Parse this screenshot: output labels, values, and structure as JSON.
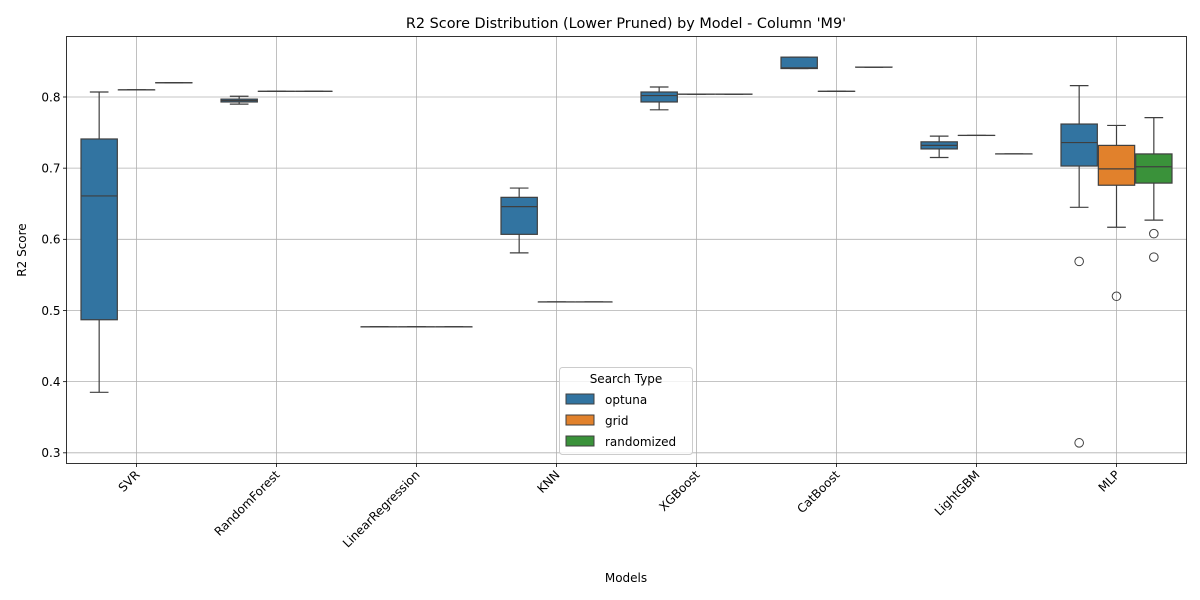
{
  "chart_data": {
    "type": "box",
    "title": "R2 Score Distribution (Lower Pruned) by Model - Column 'M9'",
    "xlabel": "Models",
    "ylabel": "R2 Score",
    "ylim": [
      0.285,
      0.885
    ],
    "yticks": [
      0.3,
      0.4,
      0.5,
      0.6,
      0.7,
      0.8
    ],
    "grid": true,
    "categories": [
      "SVR",
      "RandomForest",
      "LinearRegression",
      "KNN",
      "XGBoost",
      "CatBoost",
      "LightGBM",
      "MLP"
    ],
    "legend": {
      "title": "Search Type",
      "placement": "lower center",
      "entries": [
        "optuna",
        "grid",
        "randomized"
      ]
    },
    "colors": {
      "optuna": "#3274a1",
      "grid": "#e1812c",
      "randomized": "#3a923a"
    },
    "series": [
      {
        "name": "optuna",
        "boxes": [
          {
            "whislo": 0.385,
            "q1": 0.487,
            "med": 0.661,
            "q3": 0.741,
            "whishi": 0.807,
            "fliers": []
          },
          {
            "whislo": 0.79,
            "q1": 0.793,
            "med": 0.795,
            "q3": 0.797,
            "whishi": 0.801,
            "fliers": []
          },
          {
            "whislo": 0.477,
            "q1": 0.477,
            "med": 0.477,
            "q3": 0.477,
            "whishi": 0.477,
            "fliers": []
          },
          {
            "whislo": 0.581,
            "q1": 0.607,
            "med": 0.646,
            "q3": 0.659,
            "whishi": 0.672,
            "fliers": []
          },
          {
            "whislo": 0.782,
            "q1": 0.793,
            "med": 0.802,
            "q3": 0.807,
            "whishi": 0.814,
            "fliers": []
          },
          {
            "whislo": 0.84,
            "q1": 0.84,
            "med": 0.841,
            "q3": 0.856,
            "whishi": 0.856,
            "fliers": []
          },
          {
            "whislo": 0.715,
            "q1": 0.727,
            "med": 0.732,
            "q3": 0.737,
            "whishi": 0.745,
            "fliers": []
          },
          {
            "whislo": 0.645,
            "q1": 0.703,
            "med": 0.736,
            "q3": 0.762,
            "whishi": 0.816,
            "fliers": [
              0.569,
              0.314
            ]
          }
        ]
      },
      {
        "name": "grid",
        "boxes": [
          {
            "whislo": 0.81,
            "q1": 0.81,
            "med": 0.81,
            "q3": 0.81,
            "whishi": 0.81,
            "fliers": []
          },
          {
            "whislo": 0.808,
            "q1": 0.808,
            "med": 0.808,
            "q3": 0.808,
            "whishi": 0.808,
            "fliers": []
          },
          {
            "whislo": 0.477,
            "q1": 0.477,
            "med": 0.477,
            "q3": 0.477,
            "whishi": 0.477,
            "fliers": []
          },
          {
            "whislo": 0.512,
            "q1": 0.512,
            "med": 0.512,
            "q3": 0.512,
            "whishi": 0.512,
            "fliers": []
          },
          {
            "whislo": 0.804,
            "q1": 0.804,
            "med": 0.804,
            "q3": 0.804,
            "whishi": 0.804,
            "fliers": []
          },
          {
            "whislo": 0.808,
            "q1": 0.808,
            "med": 0.808,
            "q3": 0.808,
            "whishi": 0.808,
            "fliers": []
          },
          {
            "whislo": 0.746,
            "q1": 0.746,
            "med": 0.746,
            "q3": 0.746,
            "whishi": 0.746,
            "fliers": []
          },
          {
            "whislo": 0.617,
            "q1": 0.676,
            "med": 0.699,
            "q3": 0.732,
            "whishi": 0.76,
            "fliers": [
              0.52
            ]
          }
        ]
      },
      {
        "name": "randomized",
        "boxes": [
          {
            "whislo": 0.82,
            "q1": 0.82,
            "med": 0.82,
            "q3": 0.82,
            "whishi": 0.82,
            "fliers": []
          },
          {
            "whislo": 0.808,
            "q1": 0.808,
            "med": 0.808,
            "q3": 0.808,
            "whishi": 0.808,
            "fliers": []
          },
          {
            "whislo": 0.477,
            "q1": 0.477,
            "med": 0.477,
            "q3": 0.477,
            "whishi": 0.477,
            "fliers": []
          },
          {
            "whislo": 0.512,
            "q1": 0.512,
            "med": 0.512,
            "q3": 0.512,
            "whishi": 0.512,
            "fliers": []
          },
          {
            "whislo": 0.804,
            "q1": 0.804,
            "med": 0.804,
            "q3": 0.804,
            "whishi": 0.804,
            "fliers": []
          },
          {
            "whislo": 0.842,
            "q1": 0.842,
            "med": 0.842,
            "q3": 0.842,
            "whishi": 0.842,
            "fliers": []
          },
          {
            "whislo": 0.72,
            "q1": 0.72,
            "med": 0.72,
            "q3": 0.72,
            "whishi": 0.72,
            "fliers": []
          },
          {
            "whislo": 0.627,
            "q1": 0.679,
            "med": 0.702,
            "q3": 0.72,
            "whishi": 0.771,
            "fliers": [
              0.608,
              0.575
            ]
          }
        ]
      }
    ]
  }
}
